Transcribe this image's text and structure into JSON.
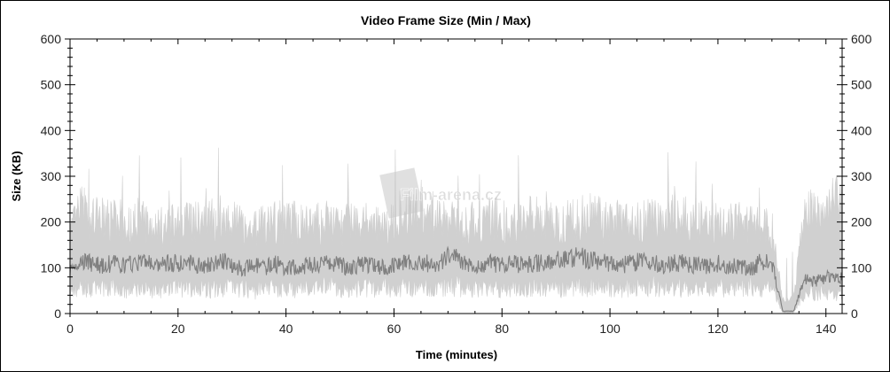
{
  "chart_data": {
    "type": "area",
    "title": "Video Frame Size (Min / Max)",
    "xlabel": "Time (minutes)",
    "ylabel": "Size (KB)",
    "xlim": [
      0,
      143
    ],
    "ylim": [
      0,
      600
    ],
    "xticks": [
      0,
      20,
      40,
      60,
      80,
      100,
      120,
      140
    ],
    "yticks": [
      0,
      100,
      200,
      300,
      400,
      500,
      600
    ],
    "grid": false,
    "watermark": "Film-arena.cz",
    "colors": {
      "max": "#d0d0d0",
      "min": "#808080"
    },
    "x": [
      0,
      2,
      4,
      6,
      8,
      10,
      12,
      14,
      16,
      18,
      20,
      22,
      24,
      26,
      28,
      30,
      32,
      34,
      36,
      38,
      40,
      42,
      44,
      46,
      48,
      50,
      52,
      54,
      56,
      58,
      60,
      62,
      64,
      66,
      68,
      70,
      72,
      74,
      76,
      78,
      80,
      82,
      84,
      86,
      88,
      90,
      92,
      94,
      96,
      98,
      100,
      102,
      104,
      106,
      108,
      110,
      112,
      114,
      116,
      118,
      120,
      122,
      124,
      126,
      128,
      130,
      132,
      134,
      136,
      138,
      140,
      142
    ],
    "series": [
      {
        "name": "Max",
        "upper": [
          170,
          230,
          200,
          210,
          200,
          190,
          195,
          200,
          190,
          185,
          200,
          195,
          200,
          205,
          210,
          200,
          195,
          185,
          190,
          200,
          195,
          200,
          190,
          195,
          200,
          190,
          195,
          200,
          195,
          185,
          200,
          210,
          230,
          220,
          210,
          200,
          190,
          195,
          200,
          210,
          200,
          195,
          205,
          210,
          200,
          195,
          200,
          210,
          215,
          205,
          200,
          200,
          195,
          200,
          205,
          200,
          210,
          205,
          200,
          195,
          200,
          195,
          200,
          190,
          185,
          185,
          30,
          30,
          210,
          225,
          230,
          250
        ],
        "lower": [
          50,
          60,
          55,
          55,
          60,
          50,
          55,
          55,
          50,
          55,
          60,
          55,
          60,
          55,
          55,
          60,
          55,
          50,
          55,
          60,
          55,
          55,
          60,
          55,
          60,
          55,
          55,
          60,
          55,
          60,
          55,
          60,
          55,
          60,
          55,
          60,
          60,
          55,
          55,
          60,
          55,
          60,
          55,
          60,
          55,
          60,
          55,
          60,
          55,
          60,
          55,
          55,
          60,
          55,
          60,
          55,
          55,
          60,
          55,
          55,
          60,
          55,
          55,
          60,
          55,
          60,
          2,
          2,
          45,
          45,
          45,
          45
        ]
      },
      {
        "name": "Min",
        "values": [
          95,
          115,
          110,
          105,
          110,
          105,
          110,
          115,
          100,
          110,
          110,
          115,
          105,
          110,
          115,
          110,
          95,
          105,
          100,
          110,
          100,
          100,
          105,
          110,
          110,
          105,
          100,
          110,
          105,
          100,
          105,
          110,
          110,
          110,
          100,
          125,
          120,
          110,
          105,
          110,
          105,
          110,
          105,
          110,
          110,
          115,
          120,
          125,
          120,
          115,
          110,
          105,
          110,
          115,
          110,
          105,
          110,
          110,
          105,
          100,
          110,
          105,
          105,
          95,
          115,
          110,
          5,
          5,
          75,
          70,
          80,
          80
        ]
      }
    ]
  }
}
